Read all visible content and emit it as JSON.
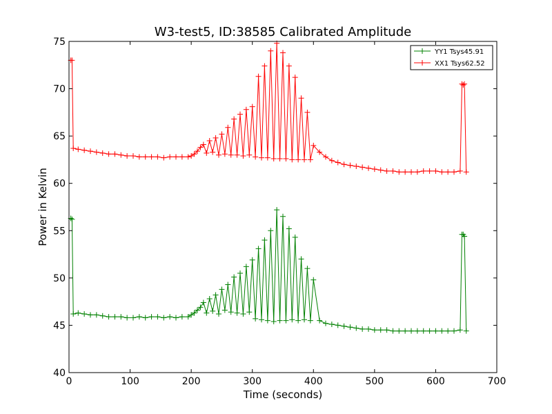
{
  "chart_data": {
    "type": "line",
    "title": "W3-test5, ID:38585 Calibrated Amplitude",
    "xlabel": "Time (seconds)",
    "ylabel": "Power in Kelvin",
    "xlim": [
      0,
      700
    ],
    "ylim": [
      40,
      75
    ],
    "xticks": [
      "0",
      "100",
      "200",
      "300",
      "400",
      "500",
      "600",
      "700"
    ],
    "yticks": [
      "40",
      "45",
      "50",
      "55",
      "60",
      "65",
      "70",
      "75"
    ],
    "grid": false,
    "legend_position": "top-right",
    "marker": "plus",
    "series": [
      {
        "name": "YY1 Tsys45.91",
        "color": "#008000",
        "x": [
          3,
          5,
          7,
          15,
          25,
          35,
          45,
          55,
          65,
          75,
          85,
          95,
          105,
          115,
          125,
          135,
          145,
          155,
          165,
          175,
          185,
          195,
          200,
          205,
          210,
          215,
          220,
          225,
          230,
          235,
          240,
          245,
          250,
          255,
          260,
          265,
          270,
          275,
          280,
          285,
          290,
          295,
          300,
          305,
          310,
          315,
          320,
          325,
          330,
          335,
          340,
          345,
          350,
          355,
          360,
          365,
          370,
          375,
          380,
          385,
          390,
          395,
          400,
          410,
          420,
          430,
          440,
          450,
          460,
          470,
          480,
          490,
          500,
          510,
          520,
          530,
          540,
          550,
          560,
          570,
          580,
          590,
          600,
          610,
          620,
          630,
          640,
          643,
          645,
          647,
          650
        ],
        "y": [
          56.3,
          56.2,
          46.2,
          46.3,
          46.2,
          46.1,
          46.1,
          46.0,
          45.9,
          45.9,
          45.9,
          45.8,
          45.8,
          45.9,
          45.8,
          45.9,
          45.9,
          45.8,
          45.9,
          45.8,
          45.9,
          45.9,
          46.1,
          46.3,
          46.6,
          46.9,
          47.4,
          46.3,
          47.8,
          46.5,
          48.2,
          46.2,
          48.8,
          46.6,
          49.3,
          46.4,
          50.1,
          46.3,
          50.5,
          46.2,
          51.2,
          46.4,
          51.9,
          45.7,
          53.1,
          45.6,
          54.0,
          45.5,
          55.0,
          45.4,
          57.2,
          45.5,
          56.5,
          45.5,
          55.2,
          45.6,
          54.3,
          45.5,
          52.0,
          45.6,
          51.0,
          45.5,
          49.8,
          45.5,
          45.2,
          45.1,
          45.0,
          44.9,
          44.8,
          44.7,
          44.6,
          44.6,
          44.5,
          44.5,
          44.5,
          44.4,
          44.4,
          44.4,
          44.4,
          44.4,
          44.4,
          44.4,
          44.4,
          44.4,
          44.4,
          44.4,
          44.5,
          54.6,
          54.6,
          54.4,
          44.4
        ]
      },
      {
        "name": "XX1 Tsys62.52",
        "color": "#ff0000",
        "x": [
          3,
          5,
          7,
          15,
          25,
          35,
          45,
          55,
          65,
          75,
          85,
          95,
          105,
          115,
          125,
          135,
          145,
          155,
          165,
          175,
          185,
          195,
          200,
          205,
          210,
          215,
          220,
          225,
          230,
          235,
          240,
          245,
          250,
          255,
          260,
          265,
          270,
          275,
          280,
          285,
          290,
          295,
          300,
          305,
          310,
          315,
          320,
          325,
          330,
          335,
          340,
          345,
          350,
          355,
          360,
          365,
          370,
          375,
          380,
          385,
          390,
          395,
          400,
          410,
          420,
          430,
          440,
          450,
          460,
          470,
          480,
          490,
          500,
          510,
          520,
          530,
          540,
          550,
          560,
          570,
          580,
          590,
          600,
          610,
          620,
          630,
          640,
          643,
          645,
          647,
          650
        ],
        "y": [
          73.0,
          73.0,
          63.7,
          63.6,
          63.5,
          63.4,
          63.3,
          63.2,
          63.1,
          63.1,
          63.0,
          62.9,
          62.9,
          62.8,
          62.8,
          62.8,
          62.8,
          62.7,
          62.8,
          62.8,
          62.8,
          62.8,
          62.9,
          63.1,
          63.4,
          63.8,
          64.1,
          63.2,
          64.5,
          63.3,
          64.8,
          63.0,
          65.2,
          63.1,
          65.9,
          63.0,
          66.8,
          63.0,
          67.3,
          62.9,
          67.8,
          63.0,
          68.1,
          62.8,
          71.3,
          62.7,
          72.4,
          62.7,
          74.0,
          62.6,
          74.8,
          62.6,
          73.8,
          62.6,
          72.4,
          62.5,
          71.2,
          62.5,
          69.0,
          62.5,
          67.5,
          62.5,
          64.0,
          63.3,
          62.8,
          62.4,
          62.2,
          62.0,
          61.9,
          61.8,
          61.7,
          61.6,
          61.5,
          61.4,
          61.3,
          61.3,
          61.2,
          61.2,
          61.2,
          61.2,
          61.3,
          61.3,
          61.3,
          61.2,
          61.2,
          61.2,
          61.3,
          70.5,
          70.4,
          70.5,
          61.2
        ]
      }
    ]
  }
}
